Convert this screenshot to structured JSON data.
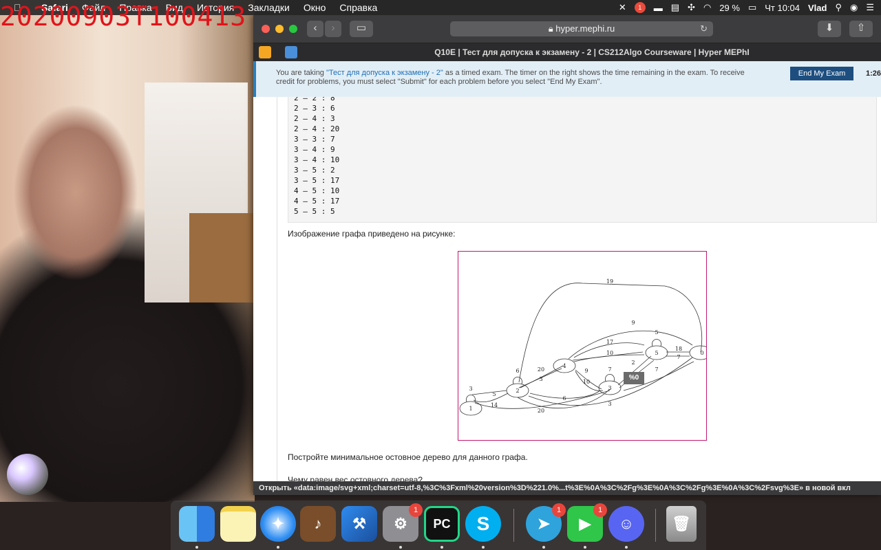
{
  "recording_stamp": "20200903T100413",
  "menubar": {
    "apple": "",
    "items": [
      "Safari",
      "Файл",
      "Правка",
      "Вид",
      "История",
      "Закладки",
      "Окно",
      "Справка"
    ],
    "battery": "29 %",
    "clock": "Чт 10:04",
    "user": "Vlad",
    "notif_count": "1"
  },
  "browser": {
    "url": "hyper.mephi.ru",
    "tab_title": "Q10E | Тест для допуска к экзамену - 2 | CS212Algo Courseware | Hyper MEPhI",
    "exam_banner": {
      "pre": "You are taking ",
      "exam_name": "\"Тест для допуска к экзамену - 2\"",
      "post": " as a timed exam. The timer on the right shows the time remaining in the exam. To receive credit for problems, you must select \"Submit\" for each problem before you select \"End My Exam\".",
      "end_button": "End My Exam",
      "timer": "1:26:"
    },
    "edge_list": "2 – 2 : 8\n2 – 3 : 6\n2 – 4 : 3\n2 – 4 : 20\n3 – 3 : 7\n3 – 4 : 9\n3 – 4 : 10\n3 – 5 : 2\n3 – 5 : 17\n4 – 5 : 10\n4 – 5 : 17\n5 – 5 : 5",
    "graph_caption": "Изображение графа приведено на рисунке:",
    "task_text": "Постройте минимальное остовное дерево для данного графа.",
    "next_text": "Чему равен вес остовного дерева?",
    "tooltip": "%0",
    "status_url": "Открыть «data:image/svg+xml;charset=utf-8,%3C%3Fxml%20version%3D%221.0%...t%3E%0A%3C%2Fg%3E%0A%3C%2Fg%3E%0A%3C%2Fsvg%3E» в новой вкл"
  },
  "graph": {
    "nodes": [
      "1",
      "2",
      "4",
      "3",
      "5",
      "0"
    ],
    "edge_labels": [
      "3",
      "5",
      "14",
      "6",
      "20",
      "3",
      "20",
      "6",
      "9",
      "10",
      "7",
      "3",
      "19",
      "9",
      "17",
      "10",
      "2",
      "7",
      "5",
      "18",
      "7"
    ]
  },
  "dock": {
    "apps": [
      {
        "name": "Finder",
        "badge": ""
      },
      {
        "name": "Notes",
        "badge": ""
      },
      {
        "name": "Safari",
        "badge": ""
      },
      {
        "name": "Garageband",
        "badge": ""
      },
      {
        "name": "Xcode",
        "badge": ""
      },
      {
        "name": "System Preferences",
        "badge": "1"
      },
      {
        "name": "PyCharm",
        "badge": ""
      },
      {
        "name": "Skype",
        "badge": ""
      },
      {
        "name": "Telegram",
        "badge": "1"
      },
      {
        "name": "FaceTime",
        "badge": "1"
      },
      {
        "name": "Discord",
        "badge": ""
      },
      {
        "name": "Trash",
        "badge": ""
      }
    ],
    "pycharm_label": "PC"
  }
}
